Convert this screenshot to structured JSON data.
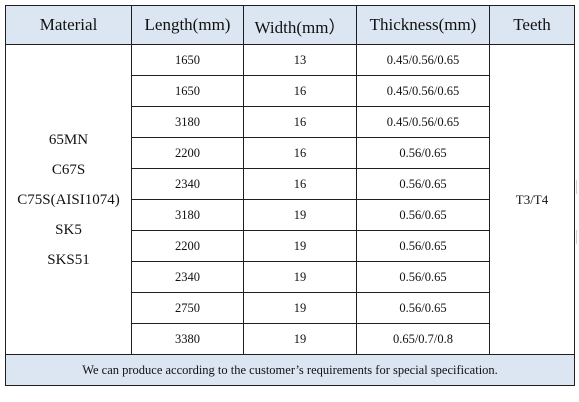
{
  "table": {
    "headers": [
      "Material",
      "Length(mm)",
      "Width(mm）",
      "Thickness(mm)",
      "Teeth"
    ],
    "materials": [
      "65MN",
      "C67S",
      "C75S(AISI1074)",
      "SK5",
      "SKS51"
    ],
    "teeth": "T3/T4",
    "rows": [
      {
        "length": "1650",
        "width": "13",
        "thickness": "0.45/0.56/0.65"
      },
      {
        "length": "1650",
        "width": "16",
        "thickness": "0.45/0.56/0.65"
      },
      {
        "length": "3180",
        "width": "16",
        "thickness": "0.45/0.56/0.65"
      },
      {
        "length": "2200",
        "width": "16",
        "thickness": "0.56/0.65"
      },
      {
        "length": "2340",
        "width": "16",
        "thickness": "0.56/0.65"
      },
      {
        "length": "3180",
        "width": "19",
        "thickness": "0.56/0.65"
      },
      {
        "length": "2200",
        "width": "19",
        "thickness": "0.56/0.65"
      },
      {
        "length": "2340",
        "width": "19",
        "thickness": "0.56/0.65"
      },
      {
        "length": "2750",
        "width": "19",
        "thickness": "0.56/0.65"
      },
      {
        "length": "3380",
        "width": "19",
        "thickness": "0.65/0.7/0.8"
      }
    ],
    "footer": "We can produce according to the customer’s requirements for special specification."
  }
}
